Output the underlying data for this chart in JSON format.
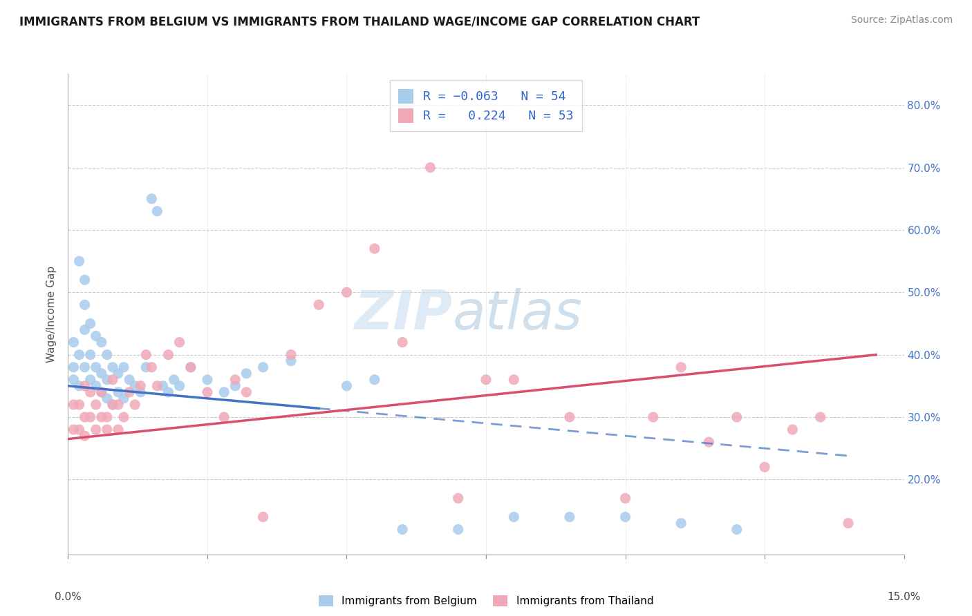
{
  "title": "IMMIGRANTS FROM BELGIUM VS IMMIGRANTS FROM THAILAND WAGE/INCOME GAP CORRELATION CHART",
  "source": "Source: ZipAtlas.com",
  "ylabel": "Wage/Income Gap",
  "y_ticks": [
    0.2,
    0.3,
    0.4,
    0.5,
    0.6,
    0.7,
    0.8
  ],
  "y_tick_labels": [
    "20.0%",
    "30.0%",
    "40.0%",
    "50.0%",
    "60.0%",
    "70.0%",
    "80.0%"
  ],
  "x_range": [
    0.0,
    0.15
  ],
  "y_range": [
    0.08,
    0.85
  ],
  "belgium_R": -0.063,
  "belgium_N": 54,
  "thailand_R": 0.224,
  "thailand_N": 53,
  "belgium_color": "#a8ccec",
  "thailand_color": "#f0a8b8",
  "belgium_line_color": "#4472c4",
  "thailand_line_color": "#d94f6e",
  "legend_belgium_label": "Immigrants from Belgium",
  "legend_thailand_label": "Immigrants from Thailand",
  "belgium_x": [
    0.001,
    0.001,
    0.001,
    0.002,
    0.002,
    0.002,
    0.003,
    0.003,
    0.003,
    0.003,
    0.004,
    0.004,
    0.004,
    0.005,
    0.005,
    0.005,
    0.006,
    0.006,
    0.006,
    0.007,
    0.007,
    0.007,
    0.008,
    0.008,
    0.009,
    0.009,
    0.01,
    0.01,
    0.011,
    0.012,
    0.013,
    0.014,
    0.015,
    0.016,
    0.017,
    0.018,
    0.019,
    0.02,
    0.022,
    0.025,
    0.028,
    0.03,
    0.032,
    0.035,
    0.04,
    0.05,
    0.055,
    0.06,
    0.07,
    0.08,
    0.09,
    0.1,
    0.11,
    0.12
  ],
  "belgium_y": [
    0.36,
    0.38,
    0.42,
    0.35,
    0.4,
    0.55,
    0.38,
    0.44,
    0.48,
    0.52,
    0.36,
    0.4,
    0.45,
    0.35,
    0.38,
    0.43,
    0.34,
    0.37,
    0.42,
    0.33,
    0.36,
    0.4,
    0.32,
    0.38,
    0.34,
    0.37,
    0.33,
    0.38,
    0.36,
    0.35,
    0.34,
    0.38,
    0.65,
    0.63,
    0.35,
    0.34,
    0.36,
    0.35,
    0.38,
    0.36,
    0.34,
    0.35,
    0.37,
    0.38,
    0.39,
    0.35,
    0.36,
    0.12,
    0.12,
    0.14,
    0.14,
    0.14,
    0.13,
    0.12
  ],
  "thailand_x": [
    0.001,
    0.001,
    0.002,
    0.002,
    0.003,
    0.003,
    0.003,
    0.004,
    0.004,
    0.005,
    0.005,
    0.006,
    0.006,
    0.007,
    0.007,
    0.008,
    0.008,
    0.009,
    0.009,
    0.01,
    0.011,
    0.012,
    0.013,
    0.014,
    0.015,
    0.016,
    0.018,
    0.02,
    0.022,
    0.025,
    0.028,
    0.03,
    0.032,
    0.035,
    0.04,
    0.045,
    0.05,
    0.055,
    0.06,
    0.065,
    0.07,
    0.075,
    0.08,
    0.09,
    0.1,
    0.105,
    0.11,
    0.115,
    0.12,
    0.125,
    0.13,
    0.135,
    0.14
  ],
  "thailand_y": [
    0.28,
    0.32,
    0.28,
    0.32,
    0.27,
    0.3,
    0.35,
    0.3,
    0.34,
    0.28,
    0.32,
    0.3,
    0.34,
    0.3,
    0.28,
    0.32,
    0.36,
    0.28,
    0.32,
    0.3,
    0.34,
    0.32,
    0.35,
    0.4,
    0.38,
    0.35,
    0.4,
    0.42,
    0.38,
    0.34,
    0.3,
    0.36,
    0.34,
    0.14,
    0.4,
    0.48,
    0.5,
    0.57,
    0.42,
    0.7,
    0.17,
    0.36,
    0.36,
    0.3,
    0.17,
    0.3,
    0.38,
    0.26,
    0.3,
    0.22,
    0.28,
    0.3,
    0.13
  ]
}
